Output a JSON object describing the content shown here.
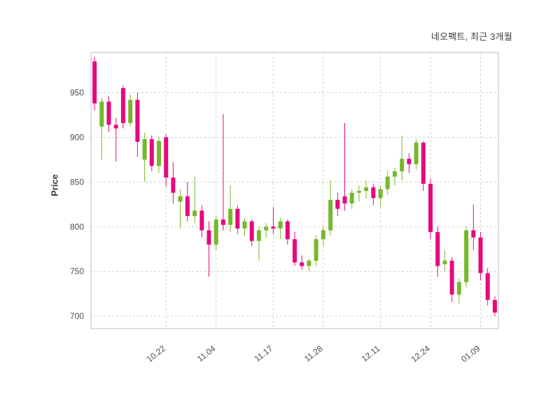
{
  "header": {
    "title": "네오펙트, 최근 3개월"
  },
  "axes": {
    "y_label": "Price"
  },
  "colors": {
    "up": "#76b82a",
    "down": "#e5097f",
    "grid": "#cfcfcf",
    "border": "#bdbdbd",
    "text": "#4d4d4d",
    "background": "#ffffff"
  },
  "chart_data": {
    "type": "candlestick",
    "title": "네오펙트, 최근 3개월",
    "ylabel": "Price",
    "ylim": [
      686,
      995
    ],
    "yticks": [
      700,
      750,
      800,
      850,
      900,
      950
    ],
    "grid": "dashed both directions",
    "legend": "none",
    "candle_format": "[open, high, low, close]",
    "up_color_meaning": "close >= open (green)",
    "down_color_meaning": "close < open (magenta)",
    "xticks": [
      {
        "index": 10,
        "label": "10.22"
      },
      {
        "index": 17,
        "label": "11.04"
      },
      {
        "index": 25,
        "label": "11.17"
      },
      {
        "index": 32,
        "label": "11.28"
      },
      {
        "index": 40,
        "label": "12.11"
      },
      {
        "index": 47,
        "label": "12.24"
      },
      {
        "index": 54,
        "label": "01.09"
      }
    ],
    "candles": [
      [
        985,
        990,
        930,
        938
      ],
      [
        912,
        944,
        875,
        940
      ],
      [
        940,
        946,
        906,
        914
      ],
      [
        914,
        922,
        873,
        910
      ],
      [
        955,
        958,
        910,
        916
      ],
      [
        916,
        948,
        912,
        942
      ],
      [
        942,
        950,
        878,
        895
      ],
      [
        875,
        905,
        850,
        898
      ],
      [
        898,
        902,
        862,
        868
      ],
      [
        868,
        900,
        860,
        896
      ],
      [
        900,
        903,
        845,
        855
      ],
      [
        855,
        872,
        826,
        838
      ],
      [
        828,
        842,
        798,
        834
      ],
      [
        834,
        850,
        806,
        812
      ],
      [
        812,
        856,
        804,
        818
      ],
      [
        818,
        824,
        788,
        796
      ],
      [
        796,
        806,
        744,
        780
      ],
      [
        780,
        812,
        774,
        808
      ],
      [
        808,
        926,
        796,
        802
      ],
      [
        802,
        846,
        794,
        820
      ],
      [
        820,
        824,
        792,
        798
      ],
      [
        798,
        810,
        790,
        806
      ],
      [
        806,
        808,
        778,
        784
      ],
      [
        784,
        800,
        762,
        796
      ],
      [
        796,
        804,
        788,
        800
      ],
      [
        800,
        822,
        792,
        798
      ],
      [
        798,
        810,
        786,
        806
      ],
      [
        806,
        808,
        780,
        786
      ],
      [
        786,
        794,
        756,
        760
      ],
      [
        760,
        768,
        752,
        756
      ],
      [
        756,
        764,
        750,
        762
      ],
      [
        762,
        790,
        756,
        786
      ],
      [
        786,
        800,
        778,
        796
      ],
      [
        796,
        852,
        790,
        830
      ],
      [
        830,
        838,
        812,
        820
      ],
      [
        834,
        916,
        818,
        826
      ],
      [
        826,
        842,
        820,
        838
      ],
      [
        838,
        846,
        828,
        840
      ],
      [
        840,
        852,
        832,
        844
      ],
      [
        844,
        848,
        824,
        832
      ],
      [
        832,
        846,
        822,
        842
      ],
      [
        842,
        862,
        836,
        856
      ],
      [
        856,
        866,
        846,
        862
      ],
      [
        862,
        902,
        852,
        876
      ],
      [
        876,
        882,
        860,
        870
      ],
      [
        870,
        898,
        864,
        894
      ],
      [
        894,
        896,
        840,
        848
      ],
      [
        848,
        854,
        786,
        794
      ],
      [
        794,
        800,
        744,
        756
      ],
      [
        758,
        774,
        750,
        762
      ],
      [
        762,
        766,
        716,
        724
      ],
      [
        724,
        742,
        714,
        738
      ],
      [
        738,
        800,
        732,
        796
      ],
      [
        796,
        825,
        774,
        788
      ],
      [
        788,
        794,
        740,
        748
      ],
      [
        748,
        754,
        712,
        718
      ],
      [
        718,
        722,
        700,
        704
      ]
    ]
  }
}
